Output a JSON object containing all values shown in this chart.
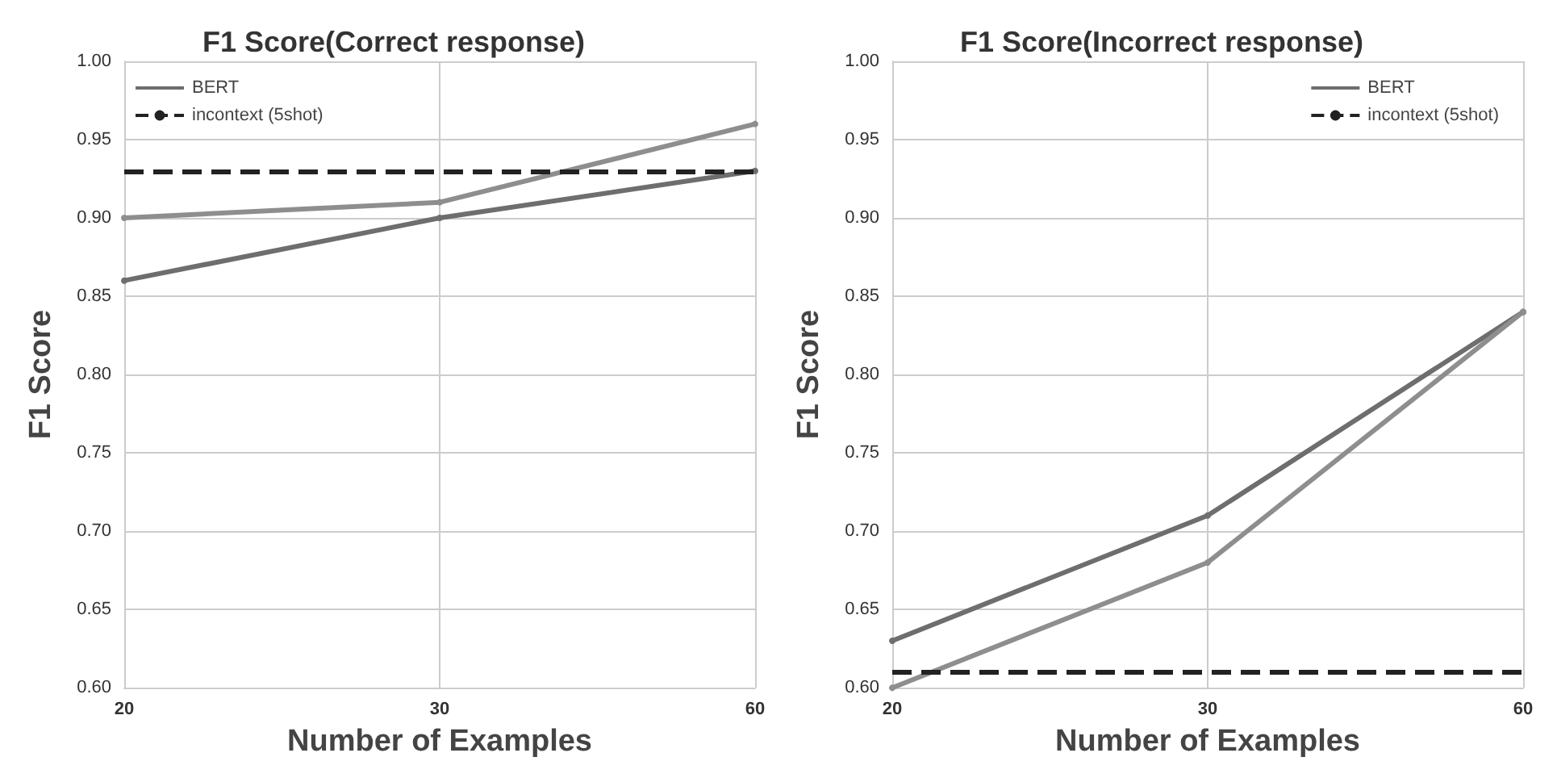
{
  "chart_data": [
    {
      "type": "line",
      "title": "F1 Score(Correct response)",
      "xlabel": "Number of Examples",
      "ylabel": "F1 Score",
      "categories": [
        "20",
        "30",
        "60"
      ],
      "series": [
        {
          "name": "BERT",
          "color": "#6e6e6e",
          "values": [
            0.86,
            0.9,
            0.93
          ]
        },
        {
          "color": "#8e8e8e",
          "values": [
            0.9,
            0.91,
            0.96
          ]
        }
      ],
      "ref_lines": [
        {
          "axis": "y",
          "value": 0.93,
          "label": "incontext (5shot)",
          "color": "#222222",
          "line_style": "dashed"
        }
      ],
      "ylim": [
        0.6,
        1.0
      ],
      "yticks": [
        {
          "value": 0.6,
          "label": "0.60"
        },
        {
          "value": 0.65,
          "label": "0.65"
        },
        {
          "value": 0.7,
          "label": "0.70"
        },
        {
          "value": 0.75,
          "label": "0.75"
        },
        {
          "value": 0.8,
          "label": "0.80"
        },
        {
          "value": 0.85,
          "label": "0.85"
        },
        {
          "value": 0.9,
          "label": "0.90"
        },
        {
          "value": 0.95,
          "label": "0.95"
        },
        {
          "value": 1.0,
          "label": "1.00"
        }
      ],
      "grid": true,
      "legend": "top left",
      "marker": "circle",
      "line_style": "solid"
    },
    {
      "type": "line",
      "title": "F1 Score(Incorrect response)",
      "xlabel": "Number of Examples",
      "ylabel": "F1 Score",
      "categories": [
        "20",
        "30",
        "60"
      ],
      "series": [
        {
          "name": "BERT",
          "color": "#6e6e6e",
          "values": [
            0.63,
            0.71,
            0.84
          ]
        },
        {
          "color": "#8e8e8e",
          "values": [
            0.6,
            0.68,
            0.84
          ]
        }
      ],
      "ref_lines": [
        {
          "axis": "y",
          "value": 0.61,
          "label": "incontext (5shot)",
          "color": "#222222",
          "line_style": "dashed"
        }
      ],
      "ylim": [
        0.6,
        1.0
      ],
      "yticks": [
        {
          "value": 0.6,
          "label": "0.60"
        },
        {
          "value": 0.65,
          "label": "0.65"
        },
        {
          "value": 0.7,
          "label": "0.70"
        },
        {
          "value": 0.75,
          "label": "0.75"
        },
        {
          "value": 0.8,
          "label": "0.80"
        },
        {
          "value": 0.85,
          "label": "0.85"
        },
        {
          "value": 0.9,
          "label": "0.90"
        },
        {
          "value": 0.95,
          "label": "0.95"
        },
        {
          "value": 1.0,
          "label": "1.00"
        }
      ],
      "grid": true,
      "legend": "top right",
      "marker": "circle",
      "line_style": "solid"
    }
  ]
}
